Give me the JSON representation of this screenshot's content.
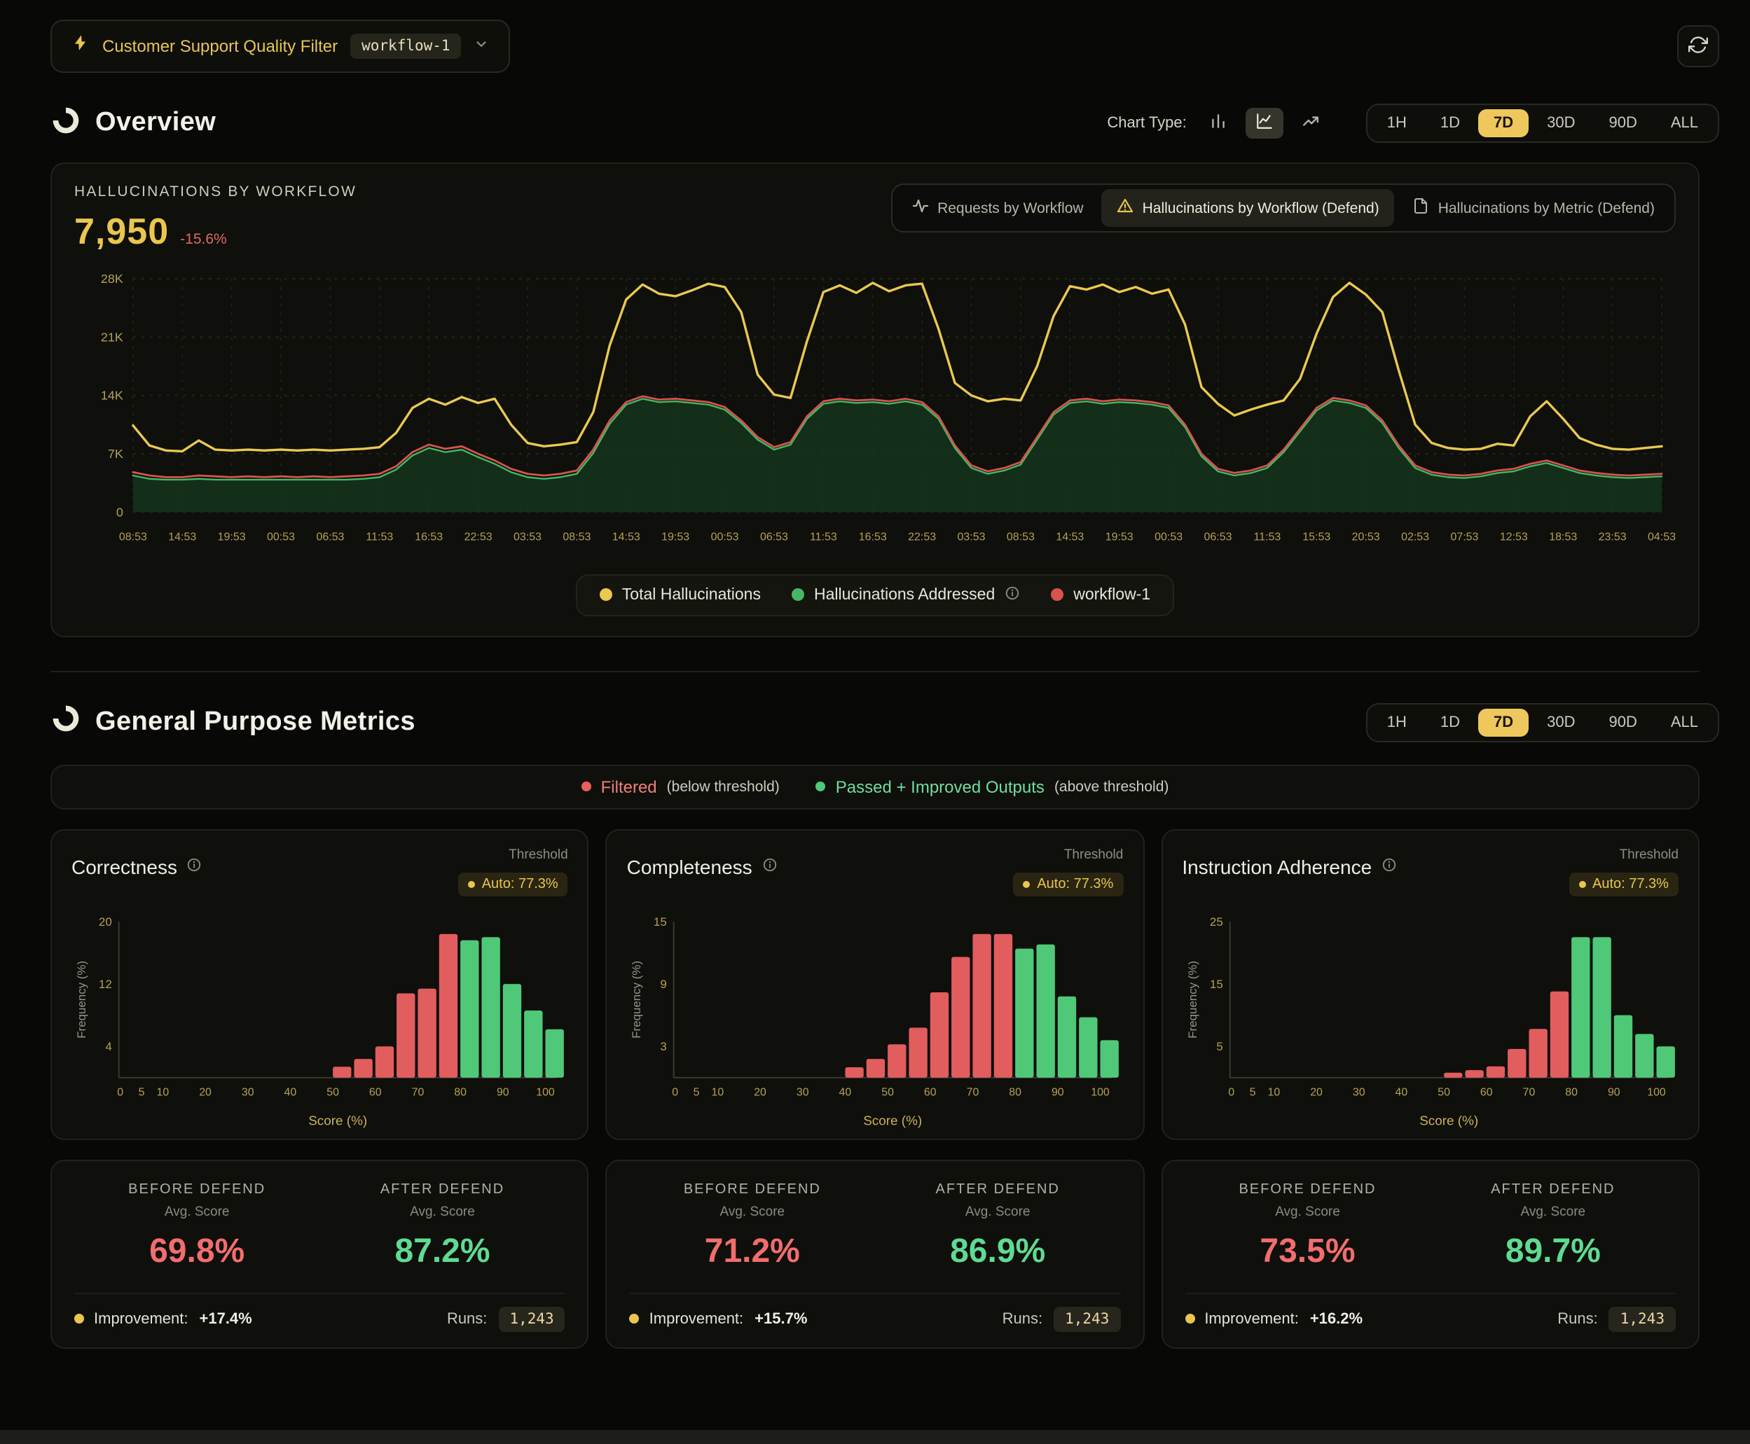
{
  "colors": {
    "accent": "#e9c64d",
    "red": "#e9605a",
    "green": "#4fc878",
    "before": "#f26d6d",
    "after": "#5fdb91"
  },
  "time_ranges": [
    "1H",
    "1D",
    "7D",
    "30D",
    "90D",
    "ALL"
  ],
  "active_range": "7D",
  "topbar": {
    "filter_label": "Customer Support Quality Filter",
    "workflow_chip": "workflow-1"
  },
  "overview": {
    "title": "Overview",
    "chart_type_label": "Chart Type:"
  },
  "main_chart": {
    "heading": "HALLUCINATIONS BY WORKFLOW",
    "value": "7,950",
    "delta": "-15.6%",
    "tabs": [
      {
        "label": "Requests by Workflow"
      },
      {
        "label": "Hallucinations by Workflow (Defend)"
      },
      {
        "label": "Hallucinations by Metric (Defend)"
      }
    ],
    "legend": [
      {
        "label": "Total Hallucinations"
      },
      {
        "label": "Hallucinations Addressed"
      },
      {
        "label": "workflow-1"
      }
    ]
  },
  "metrics_section": {
    "title": "General Purpose Metrics",
    "filtered_label": "Filtered",
    "filtered_sub": "(below threshold)",
    "passed_label": "Passed + Improved Outputs",
    "passed_sub": "(above threshold)"
  },
  "metric_cards": [
    {
      "title": "Correctness",
      "threshold_label": "Threshold",
      "threshold_value": "Auto: 77.3%",
      "before_label": "BEFORE DEFEND",
      "after_label": "AFTER DEFEND",
      "avg_label": "Avg. Score",
      "before_value": "69.8%",
      "after_value": "87.2%",
      "improvement_label": "Improvement:",
      "improvement_value": "+17.4%",
      "runs_label": "Runs:",
      "runs_value": "1,243"
    },
    {
      "title": "Completeness",
      "threshold_label": "Threshold",
      "threshold_value": "Auto: 77.3%",
      "before_label": "BEFORE DEFEND",
      "after_label": "AFTER DEFEND",
      "avg_label": "Avg. Score",
      "before_value": "71.2%",
      "after_value": "86.9%",
      "improvement_label": "Improvement:",
      "improvement_value": "+15.7%",
      "runs_label": "Runs:",
      "runs_value": "1,243"
    },
    {
      "title": "Instruction Adherence",
      "threshold_label": "Threshold",
      "threshold_value": "Auto: 77.3%",
      "before_label": "BEFORE DEFEND",
      "after_label": "AFTER DEFEND",
      "avg_label": "Avg. Score",
      "before_value": "73.5%",
      "after_value": "89.7%",
      "improvement_label": "Improvement:",
      "improvement_value": "+16.2%",
      "runs_label": "Runs:",
      "runs_value": "1,243"
    }
  ],
  "chart_data": [
    {
      "type": "area",
      "title": "Hallucinations by Workflow (Defend)",
      "units": "thousands",
      "ylim": [
        0,
        28
      ],
      "ytick_values": [
        0,
        7,
        14,
        21,
        28
      ],
      "yticks": [
        "0",
        "7K",
        "14K",
        "21K",
        "28K"
      ],
      "grid": true,
      "legend_position": "bottom",
      "x_labels": [
        "08:53",
        "14:53",
        "19:53",
        "00:53",
        "06:53",
        "11:53",
        "16:53",
        "22:53",
        "03:53",
        "08:53",
        "14:53",
        "19:53",
        "00:53",
        "06:53",
        "11:53",
        "16:53",
        "22:53",
        "03:53",
        "08:53",
        "14:53",
        "19:53",
        "00:53",
        "06:53",
        "11:53",
        "15:53",
        "20:53",
        "02:53",
        "07:53",
        "12:53",
        "18:53",
        "23:53",
        "04:53"
      ],
      "series": [
        {
          "name": "Total Hallucinations",
          "kind": "line",
          "color": "#eac94f",
          "values": [
            10.4,
            8.0,
            7.4,
            7.3,
            8.6,
            7.5,
            7.4,
            7.5,
            7.4,
            7.5,
            7.4,
            7.5,
            7.4,
            7.5,
            7.6,
            7.8,
            9.5,
            12.5,
            13.6,
            12.9,
            13.8,
            13.1,
            13.6,
            10.5,
            8.3,
            7.9,
            8.1,
            8.4,
            12.0,
            20.0,
            25.5,
            27.3,
            26.2,
            25.9,
            26.6,
            27.4,
            27.0,
            24.0,
            16.5,
            14.1,
            13.7,
            20.5,
            26.4,
            27.2,
            26.3,
            27.5,
            26.5,
            27.2,
            27.4,
            22.0,
            15.5,
            14.0,
            13.3,
            13.6,
            13.4,
            17.5,
            23.5,
            27.1,
            26.7,
            27.3,
            26.4,
            27.0,
            26.2,
            26.7,
            22.5,
            15.0,
            13.0,
            11.6,
            12.3,
            12.9,
            13.4,
            16.0,
            21.4,
            25.8,
            27.5,
            26.1,
            24.0,
            17.0,
            10.5,
            8.3,
            7.7,
            7.5,
            7.6,
            8.2,
            8.0,
            11.5,
            13.3,
            11.2,
            8.9,
            8.1,
            7.6,
            7.5,
            7.7,
            7.9
          ]
        },
        {
          "name": "Hallucinations Addressed",
          "kind": "area",
          "color": "#47b766",
          "fill": "#15371d",
          "values": [
            4.4,
            4.0,
            3.9,
            3.9,
            4.0,
            3.9,
            3.9,
            3.9,
            3.9,
            3.9,
            3.9,
            3.9,
            3.9,
            3.9,
            4.0,
            4.2,
            5.1,
            6.8,
            7.7,
            7.2,
            7.5,
            6.6,
            5.8,
            4.8,
            4.2,
            4.0,
            4.2,
            4.6,
            7.1,
            10.6,
            12.9,
            13.6,
            13.2,
            13.3,
            13.1,
            12.9,
            12.3,
            10.7,
            8.7,
            7.5,
            8.1,
            11.2,
            13.0,
            13.3,
            13.1,
            13.2,
            13.0,
            13.3,
            12.9,
            11.2,
            7.7,
            5.3,
            4.6,
            5.0,
            5.7,
            8.7,
            11.7,
            13.1,
            13.3,
            13.0,
            13.2,
            13.1,
            12.9,
            12.5,
            10.2,
            6.7,
            4.9,
            4.4,
            4.7,
            5.3,
            7.2,
            9.7,
            12.2,
            13.4,
            13.1,
            12.5,
            10.7,
            7.7,
            5.3,
            4.5,
            4.2,
            4.1,
            4.3,
            4.7,
            4.9,
            5.5,
            5.9,
            5.3,
            4.7,
            4.4,
            4.2,
            4.1,
            4.2,
            4.3
          ]
        },
        {
          "name": "workflow-1",
          "kind": "line",
          "color": "#d5544d",
          "values": [
            4.8,
            4.4,
            4.2,
            4.2,
            4.4,
            4.3,
            4.2,
            4.3,
            4.2,
            4.3,
            4.2,
            4.3,
            4.2,
            4.3,
            4.4,
            4.6,
            5.5,
            7.2,
            8.1,
            7.6,
            7.9,
            7.0,
            6.2,
            5.2,
            4.6,
            4.4,
            4.6,
            5.0,
            7.5,
            11.0,
            13.2,
            13.9,
            13.5,
            13.6,
            13.4,
            13.2,
            12.6,
            11.0,
            9.0,
            7.8,
            8.4,
            11.5,
            13.3,
            13.6,
            13.4,
            13.5,
            13.3,
            13.6,
            13.2,
            11.5,
            8.0,
            5.6,
            4.9,
            5.3,
            6.0,
            9.0,
            12.0,
            13.4,
            13.6,
            13.3,
            13.5,
            13.4,
            13.2,
            12.8,
            10.5,
            7.0,
            5.2,
            4.7,
            5.0,
            5.6,
            7.5,
            10.0,
            12.5,
            13.7,
            13.4,
            12.8,
            11.0,
            8.0,
            5.6,
            4.8,
            4.5,
            4.4,
            4.6,
            5.0,
            5.2,
            5.8,
            6.2,
            5.6,
            5.0,
            4.7,
            4.5,
            4.4,
            4.5,
            4.6
          ]
        }
      ]
    },
    {
      "type": "bar",
      "title": "Correctness",
      "xlabel": "Score (%)",
      "ylabel": "Frequency (%)",
      "ylim": [
        0,
        20
      ],
      "yticks": [
        4,
        12,
        20
      ],
      "xticks": [
        0,
        5,
        10,
        20,
        30,
        40,
        50,
        60,
        70,
        80,
        90,
        100
      ],
      "threshold": 77.3,
      "colors": {
        "below": "#e25d5d",
        "above": "#4fc878"
      },
      "bins": [
        {
          "score": 50,
          "value": 1.4
        },
        {
          "score": 55,
          "value": 2.4
        },
        {
          "score": 60,
          "value": 4.0
        },
        {
          "score": 65,
          "value": 10.8
        },
        {
          "score": 70,
          "value": 11.4
        },
        {
          "score": 75,
          "value": 18.4
        },
        {
          "score": 80,
          "value": 17.6
        },
        {
          "score": 85,
          "value": 18.0
        },
        {
          "score": 90,
          "value": 12.0
        },
        {
          "score": 95,
          "value": 8.6
        },
        {
          "score": 100,
          "value": 6.2
        }
      ]
    },
    {
      "type": "bar",
      "title": "Completeness",
      "xlabel": "Score (%)",
      "ylabel": "Frequency (%)",
      "ylim": [
        0,
        15
      ],
      "yticks": [
        3,
        9,
        15
      ],
      "xticks": [
        0,
        5,
        10,
        20,
        30,
        40,
        50,
        60,
        70,
        80,
        90,
        100
      ],
      "threshold": 77.3,
      "colors": {
        "below": "#e25d5d",
        "above": "#4fc878"
      },
      "bins": [
        {
          "score": 40,
          "value": 1.0
        },
        {
          "score": 45,
          "value": 1.8
        },
        {
          "score": 50,
          "value": 3.2
        },
        {
          "score": 55,
          "value": 4.8
        },
        {
          "score": 60,
          "value": 8.2
        },
        {
          "score": 65,
          "value": 11.6
        },
        {
          "score": 70,
          "value": 13.8
        },
        {
          "score": 75,
          "value": 13.8
        },
        {
          "score": 80,
          "value": 12.4
        },
        {
          "score": 85,
          "value": 12.8
        },
        {
          "score": 90,
          "value": 7.8
        },
        {
          "score": 95,
          "value": 5.8
        },
        {
          "score": 100,
          "value": 3.6
        }
      ]
    },
    {
      "type": "bar",
      "title": "Instruction Adherence",
      "xlabel": "Score (%)",
      "ylabel": "Frequency (%)",
      "ylim": [
        0,
        25
      ],
      "yticks": [
        5,
        15,
        25
      ],
      "xticks": [
        0,
        5,
        10,
        20,
        30,
        40,
        50,
        60,
        70,
        80,
        90,
        100
      ],
      "threshold": 77.3,
      "colors": {
        "below": "#e25d5d",
        "above": "#4fc878"
      },
      "bins": [
        {
          "score": 50,
          "value": 0.8
        },
        {
          "score": 55,
          "value": 1.2
        },
        {
          "score": 60,
          "value": 1.8
        },
        {
          "score": 65,
          "value": 4.6
        },
        {
          "score": 70,
          "value": 7.8
        },
        {
          "score": 75,
          "value": 13.8
        },
        {
          "score": 80,
          "value": 22.5
        },
        {
          "score": 85,
          "value": 22.5
        },
        {
          "score": 90,
          "value": 10.0
        },
        {
          "score": 95,
          "value": 7.0
        },
        {
          "score": 100,
          "value": 5.0
        }
      ]
    }
  ]
}
